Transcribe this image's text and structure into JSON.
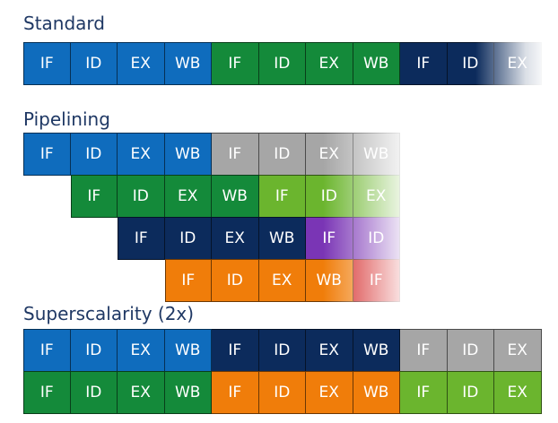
{
  "sections": {
    "standard": {
      "title": "Standard",
      "rows": [
        [
          {
            "label": "IF",
            "color": "#0f6cbd"
          },
          {
            "label": "ID",
            "color": "#0f6cbd"
          },
          {
            "label": "EX",
            "color": "#0f6cbd"
          },
          {
            "label": "WB",
            "color": "#0f6cbd"
          },
          {
            "label": "IF",
            "color": "#148a3a"
          },
          {
            "label": "ID",
            "color": "#148a3a"
          },
          {
            "label": "EX",
            "color": "#148a3a"
          },
          {
            "label": "WB",
            "color": "#148a3a"
          },
          {
            "label": "IF",
            "color": "#0c2b5c"
          },
          {
            "label": "ID",
            "color": "#0c2b5c"
          },
          {
            "label": "EX",
            "color": "#0c2b5c"
          }
        ]
      ]
    },
    "pipelining": {
      "title": "Pipelining",
      "rows": [
        [
          {
            "label": "IF",
            "color": "#0f6cbd"
          },
          {
            "label": "ID",
            "color": "#0f6cbd"
          },
          {
            "label": "EX",
            "color": "#0f6cbd"
          },
          {
            "label": "WB",
            "color": "#0f6cbd"
          },
          {
            "label": "IF",
            "color": "#a6a6a6"
          },
          {
            "label": "ID",
            "color": "#a6a6a6"
          },
          {
            "label": "EX",
            "color": "#a6a6a6"
          },
          {
            "label": "WB",
            "color": "#a6a6a6"
          }
        ],
        [
          {
            "label": "IF",
            "color": "#148a3a"
          },
          {
            "label": "ID",
            "color": "#148a3a"
          },
          {
            "label": "EX",
            "color": "#148a3a"
          },
          {
            "label": "WB",
            "color": "#148a3a"
          },
          {
            "label": "IF",
            "color": "#6bb52e"
          },
          {
            "label": "ID",
            "color": "#6bb52e"
          },
          {
            "label": "EX",
            "color": "#6bb52e"
          }
        ],
        [
          {
            "label": "IF",
            "color": "#0c2b5c"
          },
          {
            "label": "ID",
            "color": "#0c2b5c"
          },
          {
            "label": "EX",
            "color": "#0c2b5c"
          },
          {
            "label": "WB",
            "color": "#0c2b5c"
          },
          {
            "label": "IF",
            "color": "#7a35b5"
          },
          {
            "label": "ID",
            "color": "#7a35b5"
          }
        ],
        [
          {
            "label": "IF",
            "color": "#f07d0a"
          },
          {
            "label": "ID",
            "color": "#f07d0a"
          },
          {
            "label": "EX",
            "color": "#f07d0a"
          },
          {
            "label": "WB",
            "color": "#f07d0a"
          },
          {
            "label": "IF",
            "color": "#d32020"
          }
        ]
      ]
    },
    "superscalarity": {
      "title": "Superscalarity (2x)",
      "rows": [
        [
          {
            "label": "IF",
            "color": "#0f6cbd"
          },
          {
            "label": "ID",
            "color": "#0f6cbd"
          },
          {
            "label": "EX",
            "color": "#0f6cbd"
          },
          {
            "label": "WB",
            "color": "#0f6cbd"
          },
          {
            "label": "IF",
            "color": "#0c2b5c"
          },
          {
            "label": "ID",
            "color": "#0c2b5c"
          },
          {
            "label": "EX",
            "color": "#0c2b5c"
          },
          {
            "label": "WB",
            "color": "#0c2b5c"
          },
          {
            "label": "IF",
            "color": "#a6a6a6"
          },
          {
            "label": "ID",
            "color": "#a6a6a6"
          },
          {
            "label": "EX",
            "color": "#a6a6a6"
          }
        ],
        [
          {
            "label": "IF",
            "color": "#148a3a"
          },
          {
            "label": "ID",
            "color": "#148a3a"
          },
          {
            "label": "EX",
            "color": "#148a3a"
          },
          {
            "label": "WB",
            "color": "#148a3a"
          },
          {
            "label": "IF",
            "color": "#f07d0a"
          },
          {
            "label": "ID",
            "color": "#f07d0a"
          },
          {
            "label": "EX",
            "color": "#f07d0a"
          },
          {
            "label": "WB",
            "color": "#f07d0a"
          },
          {
            "label": "IF",
            "color": "#6bb52e"
          },
          {
            "label": "ID",
            "color": "#6bb52e"
          },
          {
            "label": "EX",
            "color": "#6bb52e"
          }
        ]
      ]
    }
  }
}
